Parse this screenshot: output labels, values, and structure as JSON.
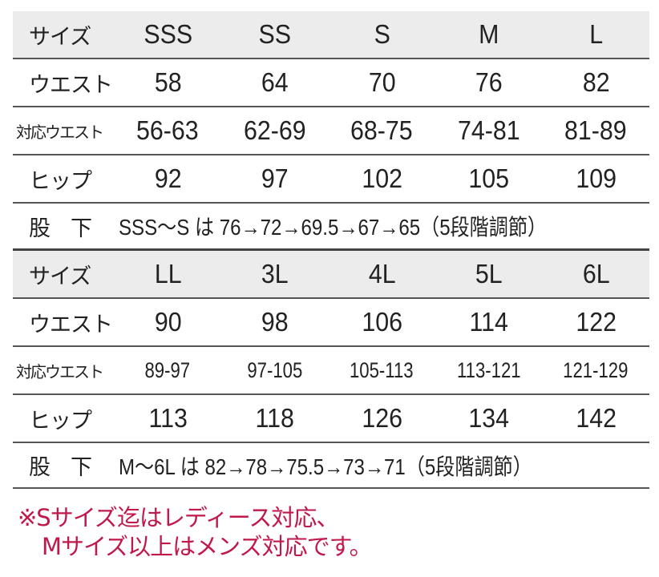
{
  "table1": {
    "size_label": "サイズ",
    "sizes": [
      "SSS",
      "SS",
      "S",
      "M",
      "L"
    ],
    "waist_label": "ウエスト",
    "waist": [
      "58",
      "64",
      "70",
      "76",
      "82"
    ],
    "fit_label": "対応ウエスト",
    "fit": [
      "56-63",
      "62-69",
      "68-75",
      "74-81",
      "81-89"
    ],
    "hip_label": "ヒップ",
    "hip": [
      "92",
      "97",
      "102",
      "105",
      "109"
    ],
    "inseam_label": "股　下",
    "inseam": "SSS～S は 76→72→69.5→67→65（5段階調節）"
  },
  "table2": {
    "size_label": "サイズ",
    "sizes": [
      "LL",
      "3L",
      "4L",
      "5L",
      "6L"
    ],
    "waist_label": "ウエスト",
    "waist": [
      "90",
      "98",
      "106",
      "114",
      "122"
    ],
    "fit_label": "対応ウエスト",
    "fit": [
      "89-97",
      "97-105",
      "105-113",
      "113-121",
      "121-129"
    ],
    "hip_label": "ヒップ",
    "hip": [
      "113",
      "118",
      "126",
      "134",
      "142"
    ],
    "inseam_label": "股　下",
    "inseam": "M～6L は 82→78→75.5→73→71（5段階調節）"
  },
  "note": {
    "line1": "※Sサイズ迄はレディース対応、",
    "line2": "Mサイズ以上はメンズ対応です。",
    "color": "#c0184a"
  },
  "header_bg": "#ececec"
}
